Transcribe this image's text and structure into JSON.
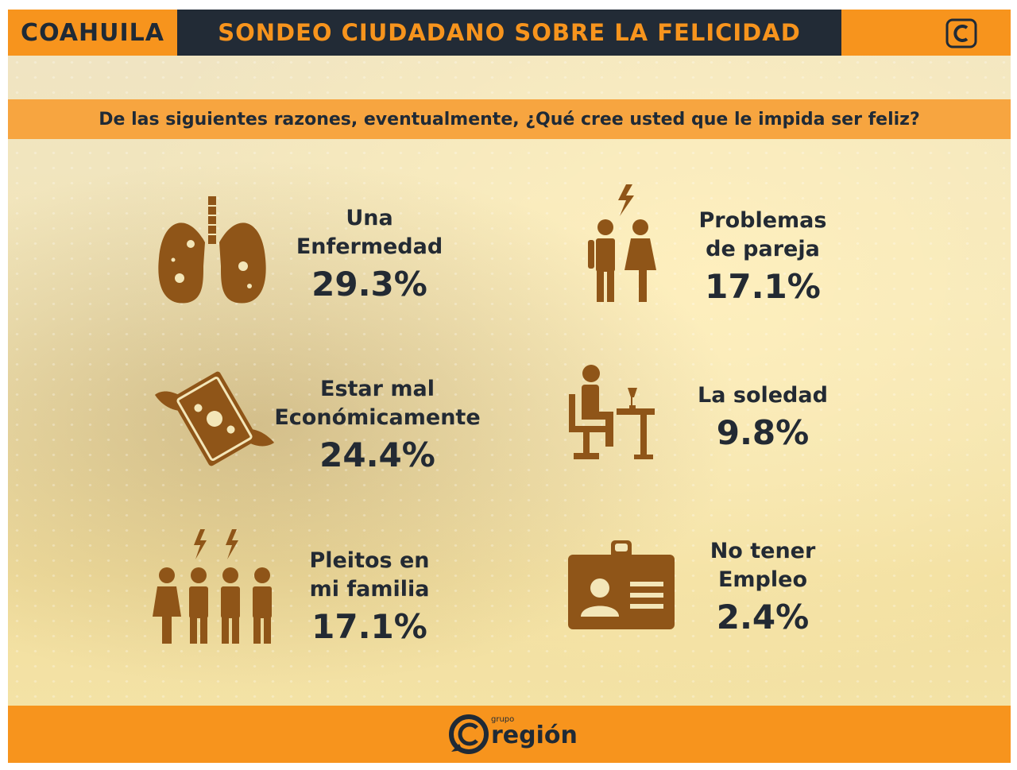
{
  "header": {
    "region": "COAHUILA",
    "title": "SONDEO CIUDADANO SOBRE LA FELICIDAD",
    "logo_icon": "c-logo-icon"
  },
  "question": "De las siguientes razones, eventualmente, ¿Qué cree usted que le impida ser feliz?",
  "chart_data": {
    "type": "table",
    "items": [
      {
        "label_line1": "Una",
        "label_line2": "Enfermedad",
        "value": "29.3%",
        "icon": "lungs-icon"
      },
      {
        "label_line1": "Estar mal",
        "label_line2": "Económicamente",
        "value": "24.4%",
        "icon": "flying-money-icon"
      },
      {
        "label_line1": "Pleitos en",
        "label_line2": "mi familia",
        "value": "17.1%",
        "icon": "family-conflict-icon"
      },
      {
        "label_line1": "Problemas",
        "label_line2": "de pareja",
        "value": "17.1%",
        "icon": "couple-conflict-icon"
      },
      {
        "label_line1": "La soledad",
        "label_line2": "",
        "value": "9.8%",
        "icon": "person-alone-at-table-icon"
      },
      {
        "label_line1": "No tener",
        "label_line2": "Empleo",
        "value": "2.4%",
        "icon": "id-badge-icon"
      }
    ]
  },
  "footer": {
    "brand_small": "grupo",
    "brand_name": "región",
    "icon": "region-logo-icon"
  },
  "colors": {
    "orange": "#f7941d",
    "dark": "#222b36",
    "icon_brown": "#8f5518"
  }
}
